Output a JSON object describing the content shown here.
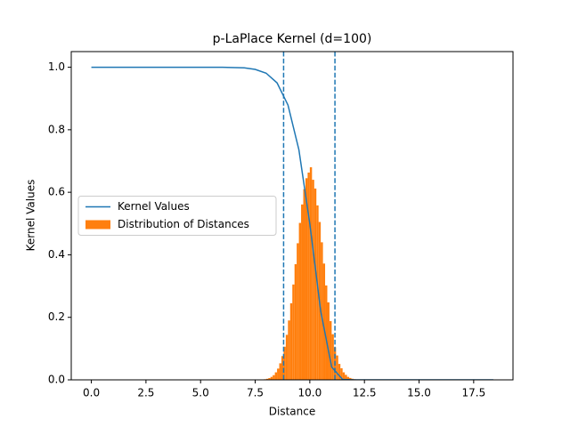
{
  "chart_data": {
    "type": "line",
    "title": "p-LaPlace Kernel (d=100)",
    "xlabel": "Distance",
    "ylabel": "Kernel Values",
    "xlim": [
      -0.92,
      19.3
    ],
    "ylim": [
      0,
      1.05
    ],
    "xticks": [
      {
        "value": 0,
        "label": "0.0"
      },
      2.5,
      {
        "value": 5,
        "label": "5.0"
      },
      7.5,
      {
        "value": 10,
        "label": "10.0"
      },
      12.5,
      {
        "value": 15,
        "label": "15.0"
      },
      17.5
    ],
    "yticks": [
      {
        "value": 0,
        "label": "0.0"
      },
      0.2,
      0.4,
      0.6,
      0.8,
      {
        "value": 1,
        "label": "1.0"
      }
    ],
    "legend": "center left",
    "series": [
      {
        "name": "Kernel Values",
        "type": "line",
        "color": "#1f77b4",
        "x": [
          0,
          1,
          2,
          3,
          4,
          5,
          6,
          7,
          7.5,
          8,
          8.5,
          9,
          9.5,
          10,
          10.5,
          11,
          11.5,
          12,
          13,
          14,
          15,
          16,
          17,
          18.4
        ],
        "values": [
          1,
          1,
          1,
          1,
          1,
          1,
          1,
          0.998,
          0.993,
          0.981,
          0.95,
          0.879,
          0.736,
          0.499,
          0.219,
          0.041,
          0.0015,
          0,
          0,
          0,
          0,
          0,
          0,
          0
        ]
      },
      {
        "name": "Distribution of Distances",
        "type": "hist",
        "color": "#ff7f0e",
        "bins": [
          7.5,
          7.6,
          7.7,
          7.8,
          7.9,
          8.0,
          8.1,
          8.2,
          8.3,
          8.4,
          8.5,
          8.6,
          8.7,
          8.8,
          8.9,
          9.0,
          9.1,
          9.2,
          9.3,
          9.4,
          9.5,
          9.6,
          9.7,
          9.8,
          9.9,
          10.0,
          10.1,
          10.2,
          10.3,
          10.4,
          10.5,
          10.6,
          10.7,
          10.8,
          10.9,
          11.0,
          11.1,
          11.2,
          11.3,
          11.4,
          11.5,
          11.6,
          11.7,
          11.8,
          11.9,
          12.0,
          12.1,
          12.2,
          12.3,
          12.4,
          12.5
        ],
        "values": [
          0.0002,
          0.0003,
          0.0006,
          0.0011,
          0.0019,
          0.0034,
          0.0057,
          0.0095,
          0.015,
          0.024,
          0.036,
          0.053,
          0.076,
          0.106,
          0.144,
          0.19,
          0.245,
          0.305,
          0.37,
          0.437,
          0.502,
          0.561,
          0.61,
          0.645,
          0.663,
          0.68,
          0.64,
          0.612,
          0.558,
          0.505,
          0.44,
          0.372,
          0.302,
          0.248,
          0.188,
          0.146,
          0.104,
          0.078,
          0.051,
          0.037,
          0.024,
          0.016,
          0.0095,
          0.006,
          0.0035,
          0.002,
          0.0012,
          0.0007,
          0.0004,
          0.0002
        ]
      }
    ],
    "vlines": {
      "values": [
        8.8,
        11.15
      ],
      "color": "#1f77b4",
      "style": "dashed"
    }
  }
}
